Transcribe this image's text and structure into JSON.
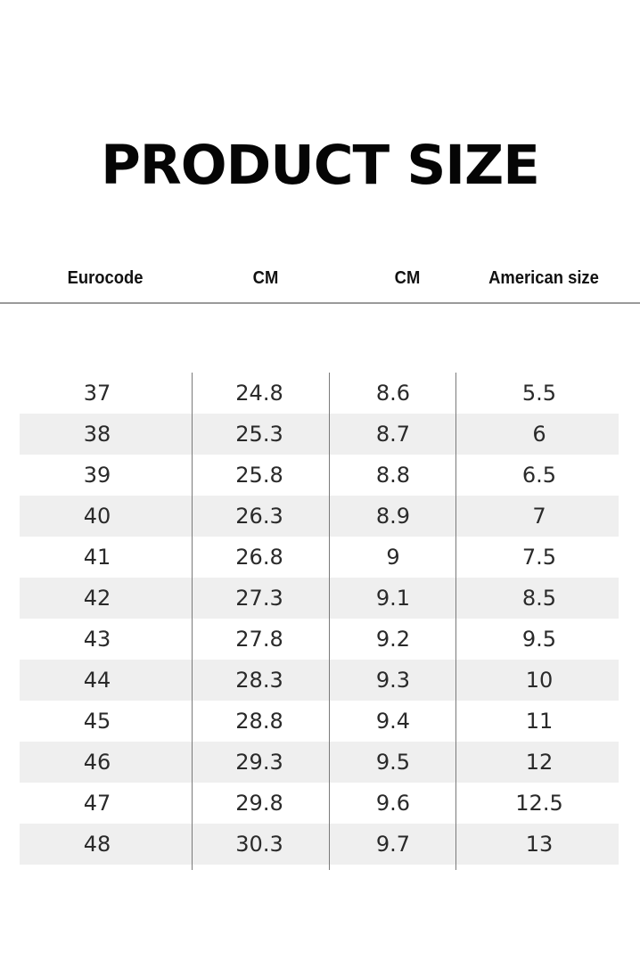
{
  "title": "PRODUCT SIZE",
  "headers": [
    "Eurocode",
    "CM",
    "CM",
    "American size"
  ],
  "rows": [
    [
      "37",
      "24.8",
      "8.6",
      "5.5"
    ],
    [
      "38",
      "25.3",
      "8.7",
      "6"
    ],
    [
      "39",
      "25.8",
      "8.8",
      "6.5"
    ],
    [
      "40",
      "26.3",
      "8.9",
      "7"
    ],
    [
      "41",
      "26.8",
      "9",
      "7.5"
    ],
    [
      "42",
      "27.3",
      "9.1",
      "8.5"
    ],
    [
      "43",
      "27.8",
      "9.2",
      "9.5"
    ],
    [
      "44",
      "28.3",
      "9.3",
      "10"
    ],
    [
      "45",
      "28.8",
      "9.4",
      "11"
    ],
    [
      "46",
      "29.3",
      "9.5",
      "12"
    ],
    [
      "47",
      "29.8",
      "9.6",
      "12.5"
    ],
    [
      "48",
      "30.3",
      "9.7",
      "13"
    ]
  ],
  "colors": {
    "shaded_row": "#efefef",
    "divider": "#7a7a7a",
    "title": "#050505"
  }
}
